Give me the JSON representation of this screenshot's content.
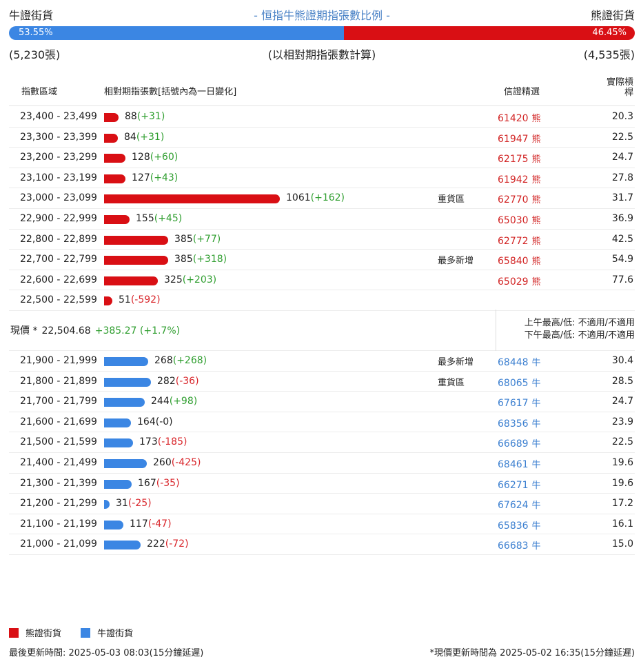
{
  "summary": {
    "bull_title": "牛證街貨",
    "center_title": "- 恒指牛熊證期指張數比例 -",
    "bear_title": "熊證街貨",
    "bull_percent_label": "53.55%",
    "bear_percent_label": "46.45%",
    "bull_ratio": 53.55,
    "bull_count": "(5,230張)",
    "calc_note": "(以相對期指張數計算)",
    "bear_count": "(4,535張)"
  },
  "columns": {
    "range": "指數區域",
    "count": "相對期指張數[括號內為一日變化]",
    "warrant": "信證精選",
    "leverage": "實際槓桿"
  },
  "colors": {
    "bear": "#d90f14",
    "bull": "#3b86e3",
    "positive_change": "#2f9e2f",
    "negative_change": "#d9262b"
  },
  "bear_rows": [
    {
      "range": "23,400 - 23,499",
      "count": 88,
      "count_text": "88",
      "change": "(+31)",
      "note": "",
      "warrant": "61420",
      "suffix": "熊",
      "leverage": "20.3"
    },
    {
      "range": "23,300 - 23,399",
      "count": 84,
      "count_text": "84",
      "change": "(+31)",
      "note": "",
      "warrant": "61947",
      "suffix": "熊",
      "leverage": "22.5"
    },
    {
      "range": "23,200 - 23,299",
      "count": 128,
      "count_text": "128",
      "change": "(+60)",
      "note": "",
      "warrant": "62175",
      "suffix": "熊",
      "leverage": "24.7"
    },
    {
      "range": "23,100 - 23,199",
      "count": 127,
      "count_text": "127",
      "change": "(+43)",
      "note": "",
      "warrant": "61942",
      "suffix": "熊",
      "leverage": "27.8"
    },
    {
      "range": "23,000 - 23,099",
      "count": 1061,
      "count_text": "1061",
      "change": "(+162)",
      "note": "重貨區",
      "warrant": "62770",
      "suffix": "熊",
      "leverage": "31.7"
    },
    {
      "range": "22,900 - 22,999",
      "count": 155,
      "count_text": "155",
      "change": "(+45)",
      "note": "",
      "warrant": "65030",
      "suffix": "熊",
      "leverage": "36.9"
    },
    {
      "range": "22,800 - 22,899",
      "count": 385,
      "count_text": "385",
      "change": "(+77)",
      "note": "",
      "warrant": "62772",
      "suffix": "熊",
      "leverage": "42.5"
    },
    {
      "range": "22,700 - 22,799",
      "count": 385,
      "count_text": "385",
      "change": "(+318)",
      "note": "最多新增",
      "warrant": "65840",
      "suffix": "熊",
      "leverage": "54.9"
    },
    {
      "range": "22,600 - 22,699",
      "count": 325,
      "count_text": "325",
      "change": "(+203)",
      "note": "",
      "warrant": "65029",
      "suffix": "熊",
      "leverage": "77.6"
    },
    {
      "range": "22,500 - 22,599",
      "count": 51,
      "count_text": "51",
      "change": "(-592)",
      "note": "",
      "warrant": "",
      "suffix": "",
      "leverage": ""
    }
  ],
  "current": {
    "label": "現價 *",
    "value": "22,504.68",
    "change": "+385.27 (+1.7%)",
    "am_high_low": "上午最高/低: 不適用/不適用",
    "pm_high_low": "下午最高/低: 不適用/不適用"
  },
  "bull_rows": [
    {
      "range": "21,900 - 21,999",
      "count": 268,
      "count_text": "268",
      "change": "(+268)",
      "note": "最多新增",
      "warrant": "68448",
      "suffix": "牛",
      "leverage": "30.4"
    },
    {
      "range": "21,800 - 21,899",
      "count": 282,
      "count_text": "282",
      "change": "(-36)",
      "note": "重貨區",
      "warrant": "68065",
      "suffix": "牛",
      "leverage": "28.5"
    },
    {
      "range": "21,700 - 21,799",
      "count": 244,
      "count_text": "244",
      "change": "(+98)",
      "note": "",
      "warrant": "67617",
      "suffix": "牛",
      "leverage": "24.7"
    },
    {
      "range": "21,600 - 21,699",
      "count": 164,
      "count_text": "164",
      "change": "(-0)",
      "note": "",
      "warrant": "68356",
      "suffix": "牛",
      "leverage": "23.9"
    },
    {
      "range": "21,500 - 21,599",
      "count": 173,
      "count_text": "173",
      "change": "(-185)",
      "note": "",
      "warrant": "66689",
      "suffix": "牛",
      "leverage": "22.5"
    },
    {
      "range": "21,400 - 21,499",
      "count": 260,
      "count_text": "260",
      "change": "(-425)",
      "note": "",
      "warrant": "68461",
      "suffix": "牛",
      "leverage": "19.6"
    },
    {
      "range": "21,300 - 21,399",
      "count": 167,
      "count_text": "167",
      "change": "(-35)",
      "note": "",
      "warrant": "66271",
      "suffix": "牛",
      "leverage": "19.6"
    },
    {
      "range": "21,200 - 21,299",
      "count": 31,
      "count_text": "31",
      "change": "(-25)",
      "note": "",
      "warrant": "67624",
      "suffix": "牛",
      "leverage": "17.2"
    },
    {
      "range": "21,100 - 21,199",
      "count": 117,
      "count_text": "117",
      "change": "(-47)",
      "note": "",
      "warrant": "65836",
      "suffix": "牛",
      "leverage": "16.1"
    },
    {
      "range": "21,000 - 21,099",
      "count": 222,
      "count_text": "222",
      "change": "(-72)",
      "note": "",
      "warrant": "66683",
      "suffix": "牛",
      "leverage": "15.0"
    }
  ],
  "legend": {
    "bear_label": "熊證街貨",
    "bull_label": "牛證街貨"
  },
  "footer": {
    "last_update": "最後更新時間: 2025-05-03 08:03(15分鐘延遲)",
    "price_update": "*現價更新時間為 2025-05-02 16:35(15分鐘延遲)"
  }
}
